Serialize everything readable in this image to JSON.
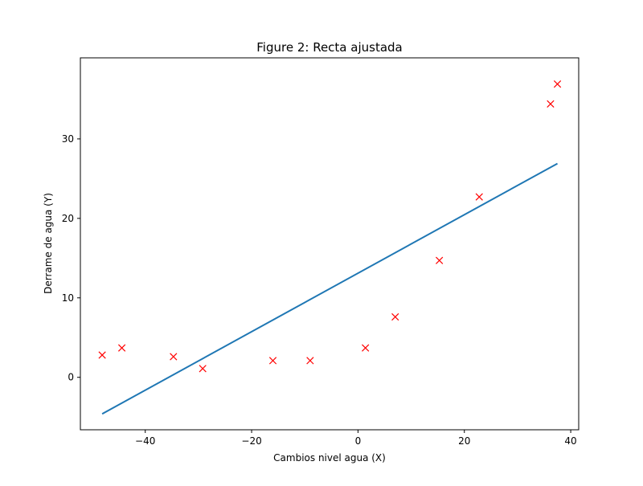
{
  "chart_data": {
    "type": "scatter",
    "title": "Figure 2: Recta ajustada",
    "xlabel": "Cambios nivel agua (X)",
    "ylabel": "Derrame de agua (Y)",
    "xlim": [
      -52.2,
      41.5
    ],
    "ylim": [
      -6.6,
      40.2
    ],
    "x_ticks": [
      -40,
      -20,
      0,
      20,
      40
    ],
    "x_tick_labels": [
      "−40",
      "−20",
      "0",
      "20",
      "40"
    ],
    "y_ticks": [
      0,
      10,
      20,
      30
    ],
    "y_tick_labels": [
      "0",
      "10",
      "20",
      "30"
    ],
    "grid": false,
    "series": [
      {
        "kind": "scatter",
        "marker": "x",
        "color": "#ff0000",
        "points": [
          [
            -48.1,
            2.8
          ],
          [
            -44.4,
            3.7
          ],
          [
            -34.7,
            2.6
          ],
          [
            -29.2,
            1.1
          ],
          [
            -16.0,
            2.1
          ],
          [
            -9.0,
            2.1
          ],
          [
            1.4,
            3.7
          ],
          [
            7.0,
            7.6
          ],
          [
            15.3,
            14.7
          ],
          [
            22.8,
            22.7
          ],
          [
            36.2,
            34.4
          ],
          [
            37.5,
            36.9
          ]
        ]
      },
      {
        "kind": "line",
        "color": "#1f77b4",
        "points": [
          [
            -48.1,
            -4.6
          ],
          [
            37.5,
            26.9
          ]
        ]
      }
    ]
  }
}
